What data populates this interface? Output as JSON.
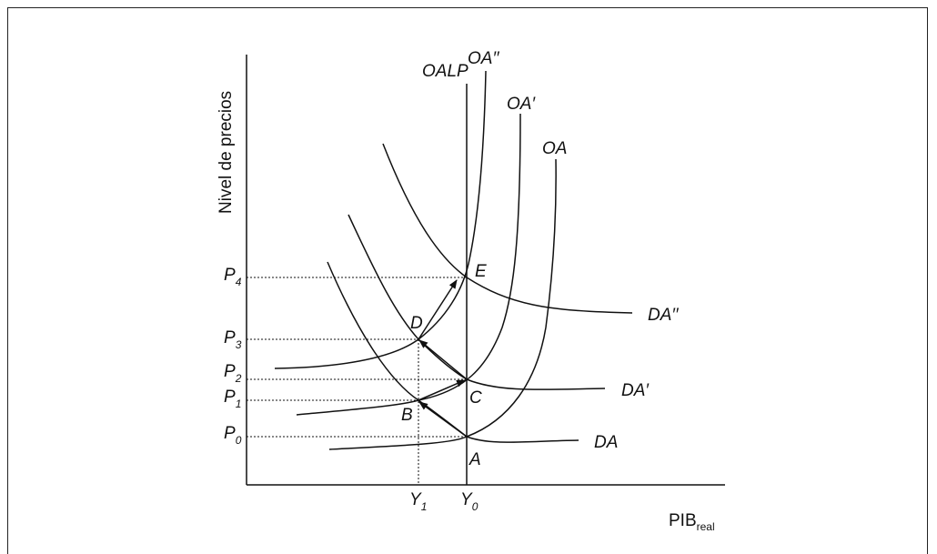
{
  "figure": {
    "y_axis_label": "Nivel de precios",
    "x_axis_label": {
      "main": "PIB",
      "sub": "real"
    }
  },
  "curves": {
    "oalp": "OALP",
    "oa": "OA",
    "oa1": "OA′",
    "oa2": "OA′′",
    "da": "DA",
    "da1": "DA′",
    "da2": "DA′′"
  },
  "points": {
    "A": "A",
    "B": "B",
    "C": "C",
    "D": "D",
    "E": "E"
  },
  "price_levels": [
    {
      "main": "P",
      "sub": "0"
    },
    {
      "main": "P",
      "sub": "1"
    },
    {
      "main": "P",
      "sub": "2"
    },
    {
      "main": "P",
      "sub": "3"
    },
    {
      "main": "P",
      "sub": "4"
    }
  ],
  "output_levels": [
    {
      "main": "Y",
      "sub": "1"
    },
    {
      "main": "Y",
      "sub": "0"
    }
  ],
  "colors": {
    "line": "#111111",
    "background": "#ffffff"
  }
}
